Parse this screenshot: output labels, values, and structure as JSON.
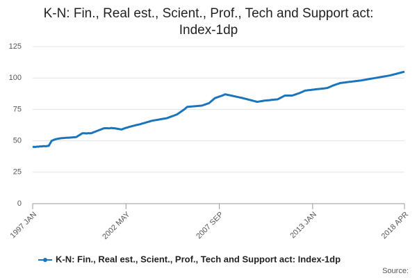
{
  "chart_data": {
    "type": "line",
    "title": "K-N: Fin., Real est., Scient., Prof., Tech and Support act: Index-1dp",
    "source": "Source:",
    "categories": [
      "1997 JAN",
      null,
      null,
      null,
      null,
      null,
      null,
      null,
      null,
      null,
      null,
      null,
      null,
      null,
      null,
      null,
      null,
      null,
      null,
      null,
      null,
      null,
      null,
      null,
      null,
      null,
      null,
      null,
      null,
      null,
      null,
      null,
      null,
      null,
      null,
      null,
      null,
      null,
      null,
      null,
      null,
      null,
      null,
      null,
      null,
      null,
      null,
      null,
      null,
      null,
      null,
      null,
      null,
      null,
      null,
      null,
      null,
      null,
      null,
      null,
      null,
      null,
      null,
      null,
      "2002 MAY",
      null,
      null,
      null,
      null,
      null,
      null,
      null,
      null,
      null,
      null,
      null,
      null,
      null,
      null,
      null,
      null,
      null,
      null,
      null,
      null,
      null,
      null,
      null,
      null,
      null,
      null,
      null,
      null,
      null,
      null,
      null,
      null,
      null,
      null,
      null,
      null,
      null,
      null,
      null,
      null,
      null,
      null,
      null,
      null,
      null,
      null,
      null,
      null,
      null,
      null,
      null,
      null,
      null,
      null,
      null,
      null,
      null,
      null,
      null,
      null,
      null,
      null,
      null,
      "2007 SEP",
      null,
      null,
      null,
      null,
      null,
      null,
      null,
      null,
      null,
      null,
      null,
      null,
      null,
      null,
      null,
      null,
      null,
      null,
      null,
      null,
      null,
      null,
      null,
      null,
      null,
      null,
      null,
      null,
      null,
      null,
      null,
      null,
      null,
      null,
      null,
      null,
      null,
      null,
      null,
      null,
      null,
      null,
      null,
      null,
      null,
      null,
      null,
      null,
      null,
      null,
      null,
      null,
      null,
      null,
      null,
      null,
      null,
      null,
      null,
      null,
      null,
      null,
      null,
      "2013 JAN",
      null,
      null,
      null,
      null,
      null,
      null,
      null,
      null,
      null,
      null,
      null,
      null,
      null,
      null,
      null,
      null,
      null,
      null,
      null,
      null,
      null,
      null,
      null,
      null,
      null,
      null,
      null,
      null,
      null,
      null,
      null,
      null,
      null,
      null,
      null,
      null,
      null,
      null,
      null,
      null,
      null,
      null,
      null,
      null,
      null,
      null,
      null,
      null,
      null,
      null,
      null,
      null,
      null,
      null,
      null,
      null,
      null,
      null,
      null,
      null,
      null,
      null,
      "2018 APR"
    ],
    "series": [
      {
        "name": "K-N: Fin., Real est., Scient., Prof., Tech and Support act: Index-1dp",
        "color": "#1a75bc",
        "values": [
          45,
          45.2,
          45.1,
          45.4,
          45.3,
          45.6,
          45.5,
          45.7,
          45.8,
          45.6,
          45.9,
          46,
          48,
          50,
          50.5,
          51,
          51.3,
          51.6,
          51.8,
          52,
          52.1,
          52.2,
          52.3,
          52.4,
          52.5,
          52.5,
          52.6,
          52.7,
          52.8,
          52.9,
          53,
          53.8,
          54.5,
          55.2,
          56,
          56,
          56,
          55.8,
          56.1,
          56,
          56,
          56.4,
          56.9,
          57.3,
          57.8,
          58.2,
          58.7,
          59.1,
          59.6,
          60,
          60,
          60.1,
          59.9,
          60,
          60.2,
          60,
          60,
          59.8,
          59.6,
          59.4,
          59.2,
          59,
          59.5,
          59.9,
          60.3,
          60.6,
          61,
          61.3,
          61.6,
          61.9,
          62.2,
          62.5,
          62.8,
          63,
          63.3,
          63.7,
          64,
          64.3,
          64.7,
          65,
          65.3,
          65.7,
          66,
          66.2,
          66.4,
          66.6,
          66.8,
          67,
          67.2,
          67.4,
          67.6,
          67.8,
          68,
          68.4,
          68.9,
          69.3,
          69.7,
          70.1,
          70.6,
          71,
          71.8,
          72.6,
          73.4,
          74.2,
          75,
          76,
          77,
          77.1,
          77.2,
          77.3,
          77.4,
          77.5,
          77.6,
          77.7,
          77.8,
          77.9,
          78,
          78.4,
          78.8,
          79.2,
          79.6,
          80,
          81,
          82,
          83,
          84,
          84.4,
          84.8,
          85.2,
          85.6,
          86,
          86.5,
          87,
          86.8,
          86.5,
          86.3,
          86,
          85.8,
          85.5,
          85.3,
          85,
          84.8,
          84.5,
          84.3,
          84,
          83.7,
          83.4,
          83.1,
          82.8,
          82.5,
          82.2,
          81.9,
          81.6,
          81.3,
          81,
          81.2,
          81.4,
          81.6,
          81.8,
          82,
          82.1,
          82.2,
          82.3,
          82.4,
          82.6,
          82.7,
          82.8,
          82.9,
          83,
          83.6,
          84.2,
          84.8,
          85.4,
          86,
          86,
          86,
          86,
          86,
          86,
          86.4,
          86.8,
          87.2,
          87.6,
          88,
          88.5,
          89,
          89.5,
          90,
          90.1,
          90.3,
          90.4,
          90.5,
          90.7,
          90.8,
          91,
          91.1,
          91.2,
          91.3,
          91.5,
          91.6,
          91.7,
          91.9,
          92,
          92.5,
          93,
          93.5,
          94,
          94.4,
          94.8,
          95.2,
          95.6,
          96,
          96.1,
          96.3,
          96.4,
          96.6,
          96.7,
          96.9,
          97,
          97.1,
          97.3,
          97.4,
          97.6,
          97.7,
          97.9,
          98,
          98.2,
          98.4,
          98.6,
          98.8,
          99,
          99.2,
          99.4,
          99.6,
          99.8,
          100,
          100.2,
          100.4,
          100.6,
          100.8,
          101,
          101.2,
          101.4,
          101.6,
          101.8,
          102,
          102.3,
          102.6,
          102.9,
          103.2,
          103.5,
          103.8,
          104.1,
          104.4,
          104.7,
          105
        ]
      }
    ],
    "ylim": [
      0,
      125
    ],
    "yticks": [
      0,
      25,
      50,
      75,
      100,
      125
    ],
    "grid": true
  }
}
